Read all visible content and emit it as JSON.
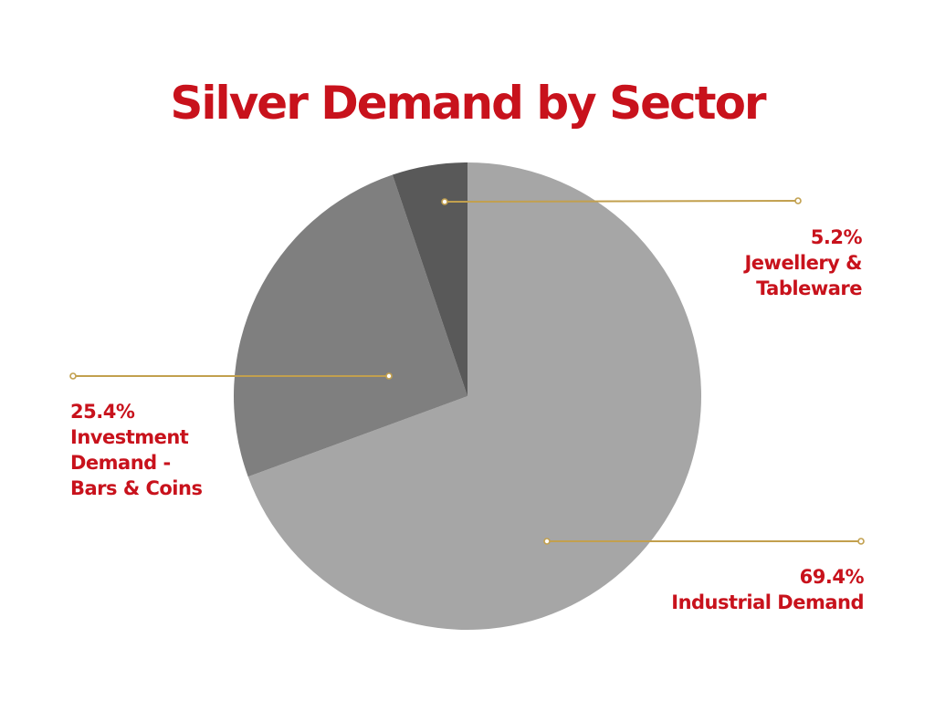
{
  "chart_data": {
    "type": "pie",
    "title": "Silver Demand by Sector",
    "slices": [
      {
        "key": "industrial",
        "pct_label": "69.4%",
        "value": 69.4,
        "label_lines": [
          "Industrial Demand"
        ],
        "color": "#a6a6a6"
      },
      {
        "key": "investment",
        "pct_label": "25.4%",
        "value": 25.4,
        "label_lines": [
          "Investment",
          "Demand -",
          "Bars & Coins"
        ],
        "color": "#7f7f7f"
      },
      {
        "key": "jewellery",
        "pct_label": "5.2%",
        "value": 5.2,
        "label_lines": [
          "Jewellery &",
          "Tableware"
        ],
        "color": "#595959"
      }
    ],
    "start_angle": "12 o'clock",
    "direction": "clockwise",
    "legend": "none",
    "leader_line_color": "#c2a04e",
    "label_color": "#c8121c"
  }
}
